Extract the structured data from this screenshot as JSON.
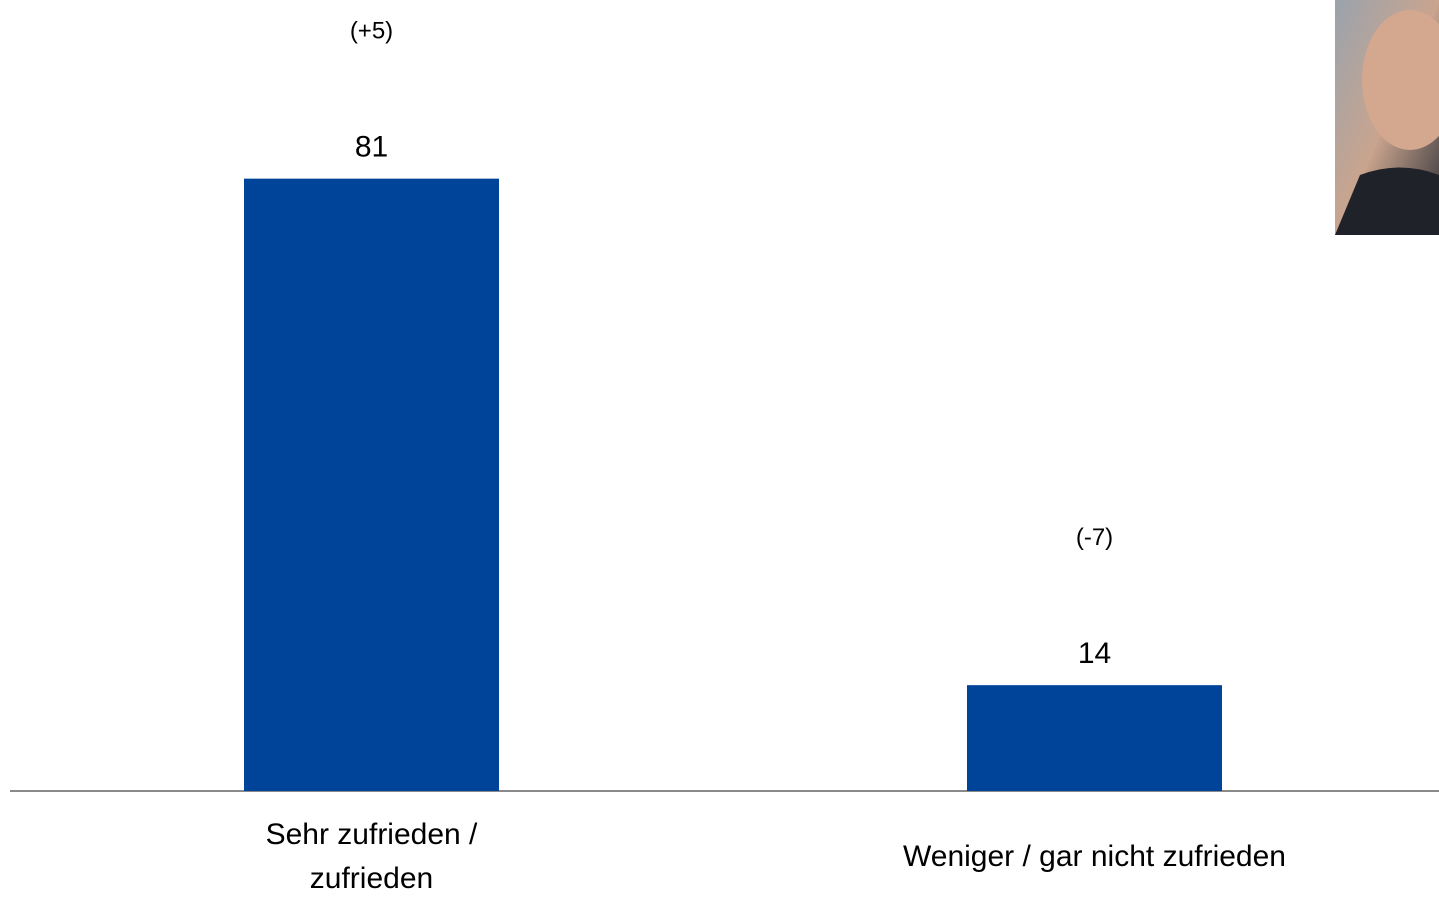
{
  "chart_data": {
    "type": "bar",
    "categories": [
      "Sehr zufrieden / zufrieden",
      "Weniger / gar nicht zufrieden"
    ],
    "values": [
      81,
      14
    ],
    "change_labels": [
      "(+5)",
      "(-7)"
    ],
    "color": "#00449a"
  }
}
